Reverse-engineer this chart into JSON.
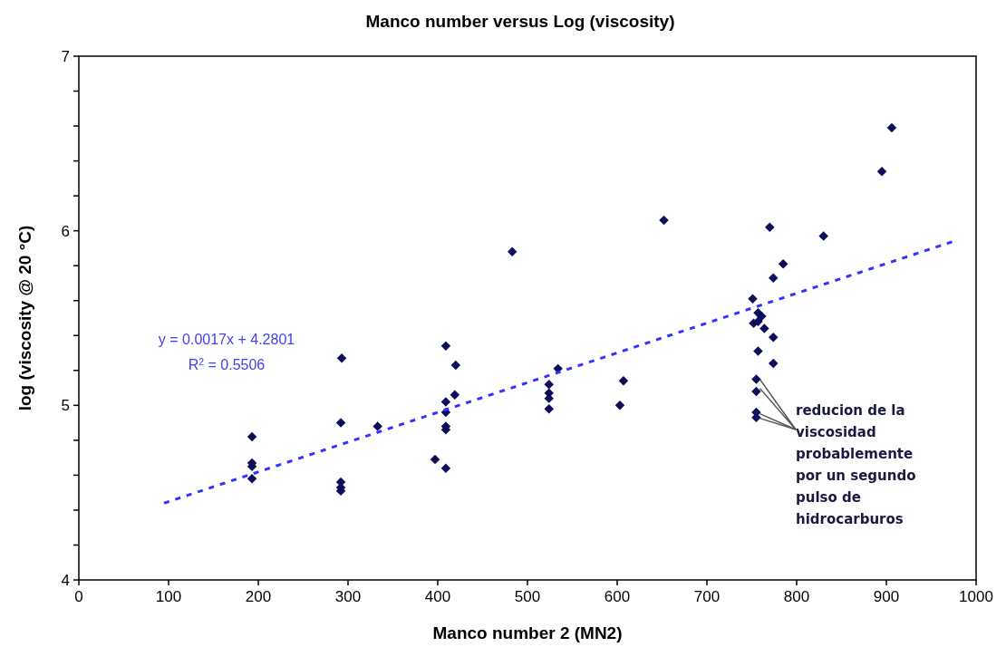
{
  "chart_data": {
    "type": "scatter",
    "title": "Manco number versus Log (viscosity)",
    "xlabel": "Manco number 2 (MN2)",
    "ylabel": "log (viscosity @ 20 °C)",
    "xlim": [
      0,
      1000
    ],
    "ylim": [
      4,
      7
    ],
    "xticks": [
      0,
      100,
      200,
      300,
      400,
      500,
      600,
      700,
      800,
      900,
      1000
    ],
    "yticks": [
      4,
      {
        "value": 4.2,
        "label": null
      },
      {
        "value": 4.4,
        "label": null
      },
      {
        "value": 4.6,
        "label": null
      },
      {
        "value": 4.8,
        "label": null
      },
      5,
      {
        "value": 5.2,
        "label": null
      },
      {
        "value": 5.4,
        "label": null
      },
      {
        "value": 5.6,
        "label": null
      },
      {
        "value": 5.8,
        "label": null
      },
      6,
      {
        "value": 6.2,
        "label": null
      },
      {
        "value": 6.4,
        "label": null
      },
      {
        "value": 6.6,
        "label": null
      },
      {
        "value": 6.8,
        "label": null
      },
      7
    ],
    "grid": false,
    "series": [
      {
        "color": "#0d0d5c",
        "marker": "diamond",
        "x": [
          193,
          193,
          193,
          193,
          293,
          292,
          292,
          292,
          292,
          333,
          397,
          409,
          409,
          409,
          409,
          409,
          409,
          419,
          420,
          483,
          524,
          524,
          524,
          524,
          534,
          603,
          607,
          652,
          751,
          752,
          755,
          755,
          755,
          755,
          757,
          757,
          757,
          761,
          764,
          770,
          774,
          774,
          774,
          785,
          830,
          895,
          906
        ],
        "values": [
          4.82,
          4.67,
          4.65,
          4.58,
          5.27,
          4.9,
          4.56,
          4.53,
          4.51,
          4.88,
          4.69,
          5.34,
          5.02,
          4.96,
          4.88,
          4.86,
          4.64,
          5.06,
          5.23,
          5.88,
          5.12,
          5.07,
          5.04,
          4.98,
          5.21,
          5.0,
          5.14,
          6.06,
          5.61,
          5.47,
          5.15,
          5.08,
          4.96,
          4.93,
          5.53,
          5.48,
          5.31,
          5.51,
          5.44,
          6.02,
          5.73,
          5.39,
          5.24,
          5.81,
          5.97,
          6.34,
          6.59
        ]
      },
      {
        "type": "line",
        "color": "#3333ff",
        "line_style": "dashed",
        "marker": "none",
        "x": [
          95,
          975
        ],
        "values": [
          4.44,
          5.94
        ]
      }
    ],
    "annotations": [
      "y = 0.0017x + 4.2801",
      "R$^{2}$ = 0.5506",
      {
        "text": "reducion de la\nviscosidad\nprobablemente\npor un segundo\npulso de\nhidrocarburos",
        "x": 755,
        "y": 5.04
      }
    ]
  }
}
